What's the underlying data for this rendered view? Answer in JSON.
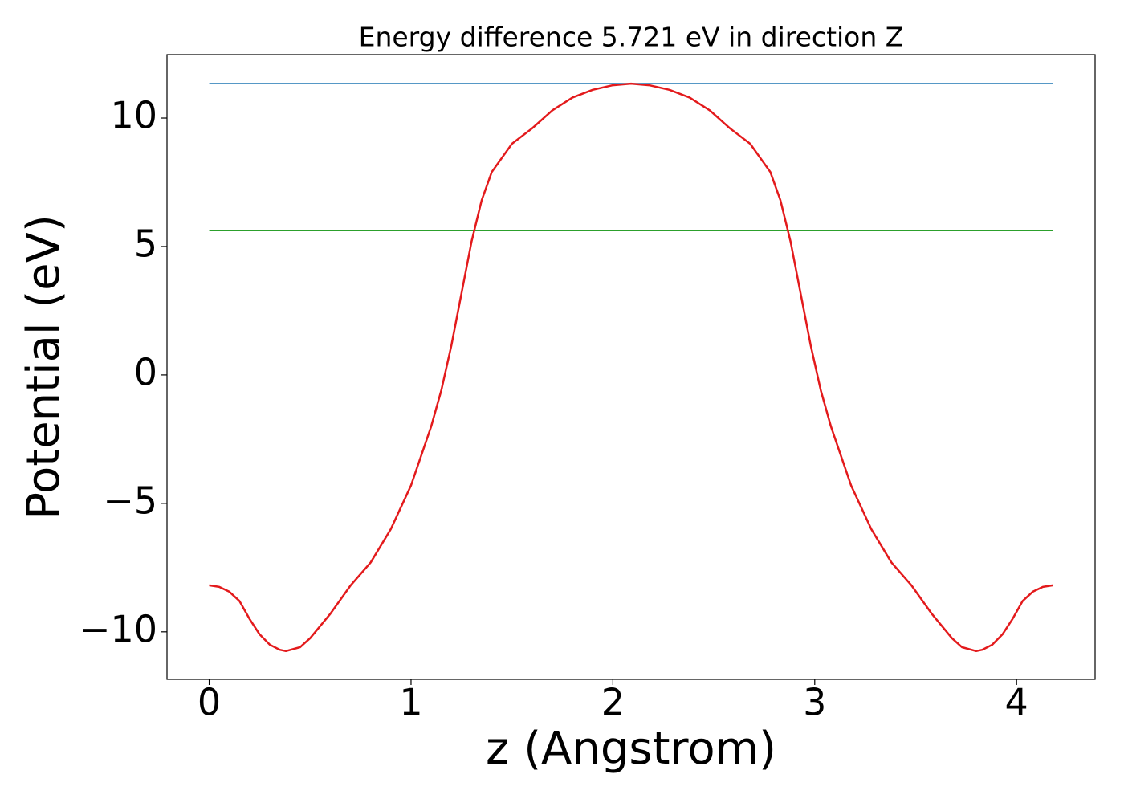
{
  "chart_data": {
    "type": "line",
    "title": "Energy difference 5.721 eV in direction Z",
    "xlabel": "z (Angstrom)",
    "ylabel": "Potential (eV)",
    "xlim": [
      -0.209,
      4.389
    ],
    "ylim": [
      -11.85,
      12.47
    ],
    "xticks": [
      0,
      1,
      2,
      3,
      4
    ],
    "yticks": [
      {
        "value": -10,
        "label": "−10"
      },
      {
        "value": -5,
        "label": "−5"
      },
      0,
      5,
      10
    ],
    "series": [
      {
        "color": "#1f77b4",
        "x": [
          0,
          4.18
        ],
        "values": [
          11.34,
          11.34
        ]
      },
      {
        "color": "#2ca02c",
        "x": [
          0,
          4.18
        ],
        "values": [
          5.62,
          5.62
        ]
      },
      {
        "color": "#e31a1c",
        "x": [
          0,
          0.05,
          0.1,
          0.15,
          0.2,
          0.25,
          0.3,
          0.35,
          0.38,
          0.45,
          0.5,
          0.6,
          0.7,
          0.8,
          0.9,
          1.0,
          1.1,
          1.15,
          1.2,
          1.3,
          1.35,
          1.4,
          1.5,
          1.6,
          1.7,
          1.8,
          1.9,
          2.0,
          2.09,
          2.18,
          2.28,
          2.38,
          2.48,
          2.58,
          2.68,
          2.78,
          2.83,
          2.88,
          2.98,
          3.03,
          3.08,
          3.18,
          3.28,
          3.38,
          3.48,
          3.58,
          3.68,
          3.73,
          3.8,
          3.83,
          3.88,
          3.93,
          3.98,
          4.03,
          4.08,
          4.13,
          4.18
        ],
        "values": [
          -8.19,
          -8.25,
          -8.44,
          -8.8,
          -9.5,
          -10.1,
          -10.5,
          -10.7,
          -10.75,
          -10.6,
          -10.25,
          -9.3,
          -8.2,
          -7.3,
          -6.0,
          -4.3,
          -2.0,
          -0.6,
          1.15,
          5.2,
          6.8,
          7.9,
          9.0,
          9.6,
          10.3,
          10.8,
          11.1,
          11.28,
          11.34,
          11.28,
          11.1,
          10.8,
          10.3,
          9.6,
          9.0,
          7.9,
          6.8,
          5.2,
          1.15,
          -0.6,
          -2.0,
          -4.3,
          -6.0,
          -7.3,
          -8.2,
          -9.3,
          -10.25,
          -10.6,
          -10.75,
          -10.7,
          -10.5,
          -10.1,
          -9.5,
          -8.8,
          -8.44,
          -8.25,
          -8.19
        ]
      }
    ]
  }
}
